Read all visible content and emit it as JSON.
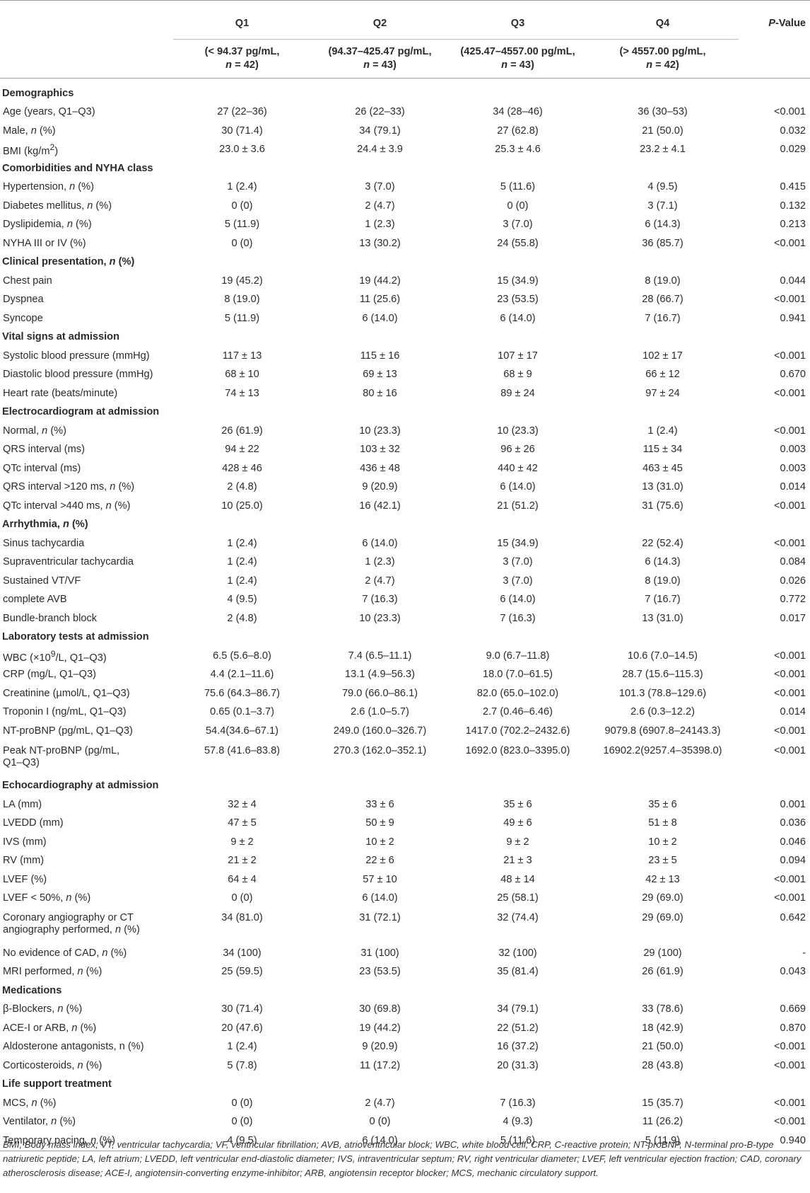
{
  "header": {
    "q1": "Q1",
    "q2": "Q2",
    "q3": "Q3",
    "q4": "Q4",
    "pvalue_p": "P",
    "pvalue_rest": "-Value",
    "q1_range": "(< 94.37 pg/mL,",
    "q2_range": "(94.37–425.47 pg/mL,",
    "q3_range": "(425.47–4557.00 pg/mL,",
    "q4_range": "(> 4557.00 pg/mL,",
    "n_prefix": "n",
    "q1_n": " = 42)",
    "q2_n": " = 43)",
    "q3_n": " = 43)",
    "q4_n": " = 42)"
  },
  "rows": {
    "r01": [
      "Demographics"
    ],
    "r02": [
      "Age (years, Q1–Q3)",
      "27 (22–36)",
      "26 (22–33)",
      "34 (28–46)",
      "36 (30–53)",
      "<0.001"
    ],
    "r03": [
      "Male, ",
      "n",
      " (%)",
      "30 (71.4)",
      "34 (79.1)",
      "27 (62.8)",
      "21 (50.0)",
      "0.032"
    ],
    "r04": [
      "BMI (kg/m",
      "2",
      ")",
      "23.0 ± 3.6",
      "24.4 ± 3.9",
      "25.3 ± 4.6",
      "23.2 ± 4.1",
      "0.029"
    ],
    "r05": [
      "Comorbidities and NYHA class"
    ],
    "r06": [
      "Hypertension, ",
      "n",
      " (%)",
      "1 (2.4)",
      "3 (7.0)",
      "5 (11.6)",
      "4 (9.5)",
      "0.415"
    ],
    "r07": [
      "Diabetes mellitus, ",
      "n",
      " (%)",
      "0 (0)",
      "2 (4.7)",
      "0 (0)",
      "3 (7.1)",
      "0.132"
    ],
    "r08": [
      "Dyslipidemia, ",
      "n",
      " (%)",
      "5 (11.9)",
      "1 (2.3)",
      "3 (7.0)",
      "6 (14.3)",
      "0.213"
    ],
    "r09": [
      "NYHA III or IV (%)",
      "0 (0)",
      "13 (30.2)",
      "24 (55.8)",
      "36 (85.7)",
      "<0.001"
    ],
    "r10": [
      "Clinical presentation, ",
      "n",
      " (%)"
    ],
    "r11": [
      "Chest pain",
      "19 (45.2)",
      "19 (44.2)",
      "15 (34.9)",
      "8 (19.0)",
      "0.044"
    ],
    "r12": [
      "Dyspnea",
      "8 (19.0)",
      "11 (25.6)",
      "23 (53.5)",
      "28 (66.7)",
      "<0.001"
    ],
    "r13": [
      "Syncope",
      "5 (11.9)",
      "6 (14.0)",
      "6 (14.0)",
      "7 (16.7)",
      "0.941"
    ],
    "r14": [
      "Vital signs at admission"
    ],
    "r15": [
      "Systolic blood pressure (mmHg)",
      "117 ± 13",
      "115 ± 16",
      "107 ± 17",
      "102 ± 17",
      "<0.001"
    ],
    "r16": [
      "Diastolic blood pressure (mmHg)",
      "68 ± 10",
      "69 ± 13",
      "68 ± 9",
      "66 ± 12",
      "0.670"
    ],
    "r17": [
      "Heart rate (beats/minute)",
      "74 ± 13",
      "80 ± 16",
      "89 ± 24",
      "97 ± 24",
      "<0.001"
    ],
    "r18": [
      "Electrocardiogram at admission"
    ],
    "r19": [
      "Normal, ",
      "n",
      " (%)",
      "26 (61.9)",
      "10 (23.3)",
      "10 (23.3)",
      "1 (2.4)",
      "<0.001"
    ],
    "r20": [
      "QRS interval (ms)",
      "94 ± 22",
      "103 ± 32",
      "96 ± 26",
      "115 ± 34",
      "0.003"
    ],
    "r21": [
      "QTc interval (ms)",
      "428 ± 46",
      "436 ± 48",
      "440 ± 42",
      "463 ± 45",
      "0.003"
    ],
    "r22": [
      "QRS interval >120 ms, ",
      "n",
      " (%)",
      "2 (4.8)",
      "9 (20.9)",
      "6 (14.0)",
      "13 (31.0)",
      "0.014"
    ],
    "r23": [
      "QTc interval >440 ms, ",
      "n",
      " (%)",
      "10 (25.0)",
      "16 (42.1)",
      "21 (51.2)",
      "31 (75.6)",
      "<0.001"
    ],
    "r24": [
      "Arrhythmia, ",
      "n",
      " (%)"
    ],
    "r25": [
      "Sinus tachycardia",
      "1 (2.4)",
      "6 (14.0)",
      "15 (34.9)",
      "22 (52.4)",
      "<0.001"
    ],
    "r26": [
      "Supraventricular tachycardia",
      "1 (2.4)",
      "1 (2.3)",
      "3 (7.0)",
      "6 (14.3)",
      "0.084"
    ],
    "r27": [
      "Sustained VT/VF",
      "1 (2.4)",
      "2 (4.7)",
      "3 (7.0)",
      "8 (19.0)",
      "0.026"
    ],
    "r28": [
      "complete AVB",
      "4 (9.5)",
      "7 (16.3)",
      "6 (14.0)",
      "7 (16.7)",
      "0.772"
    ],
    "r29": [
      "Bundle-branch block",
      "2 (4.8)",
      "10 (23.3)",
      "7 (16.3)",
      "13 (31.0)",
      "0.017"
    ],
    "r30": [
      "Laboratory tests at admission"
    ],
    "r31": [
      "WBC (×10",
      "9",
      "/L, Q1–Q3)",
      "6.5 (5.6–8.0)",
      "7.4 (6.5–11.1)",
      "9.0 (6.7–11.8)",
      "10.6 (7.0–14.5)",
      "<0.001"
    ],
    "r32": [
      "CRP (mg/L, Q1–Q3)",
      "4.4 (2.1–11.6)",
      "13.1 (4.9–56.3)",
      "18.0 (7.0–61.5)",
      "28.7 (15.6–115.3)",
      "<0.001"
    ],
    "r33": [
      "Creatinine (µmol/L, Q1–Q3)",
      "75.6 (64.3–86.7)",
      "79.0 (66.0–86.1)",
      "82.0 (65.0–102.0)",
      "101.3 (78.8–129.6)",
      "<0.001"
    ],
    "r34": [
      "Troponin I (ng/mL, Q1–Q3)",
      "0.65 (0.1–3.7)",
      "2.6 (1.0–5.7)",
      "2.7 (0.46–6.46)",
      "2.6 (0.3–12.2)",
      "0.014"
    ],
    "r35": [
      "NT-proBNP (pg/mL, Q1–Q3)",
      "54.4(34.6–67.1)",
      "249.0 (160.0–326.7)",
      "1417.0 (702.2–2432.6)",
      "9079.8 (6907.8–24143.3)",
      "<0.001"
    ],
    "r36": [
      "Peak NT-proBNP (pg/mL,",
      "Q1–Q3)",
      "57.8 (41.6–83.8)",
      "270.3 (162.0–352.1)",
      "1692.0 (823.0–3395.0)",
      "16902.2(9257.4–35398.0)",
      "<0.001"
    ],
    "r37": [
      "Echocardiography at admission"
    ],
    "r38": [
      "LA (mm)",
      "32 ± 4",
      "33 ± 6",
      "35 ± 6",
      "35 ± 6",
      "0.001"
    ],
    "r39": [
      "LVEDD (mm)",
      "47 ± 5",
      "50 ± 9",
      "49 ± 6",
      "51 ± 8",
      "0.036"
    ],
    "r40": [
      "IVS (mm)",
      "9 ± 2",
      "10 ± 2",
      "9 ± 2",
      "10 ± 2",
      "0.046"
    ],
    "r41": [
      "RV (mm)",
      "21 ± 2",
      "22 ± 6",
      "21 ± 3",
      "23 ± 5",
      "0.094"
    ],
    "r42": [
      "LVEF (%)",
      "64 ± 4",
      "57 ± 10",
      "48 ± 14",
      "42 ± 13",
      "<0.001"
    ],
    "r43": [
      "LVEF < 50%, ",
      "n",
      " (%)",
      "0 (0)",
      "6 (14.0)",
      "25 (58.1)",
      "29 (69.0)",
      "<0.001"
    ],
    "r44": [
      "Coronary angiography or CT",
      "angiography performed, ",
      "n",
      " (%)",
      "34 (81.0)",
      "31 (72.1)",
      "32 (74.4)",
      "29 (69.0)",
      "0.642"
    ],
    "r45": [
      "No evidence of CAD, ",
      "n",
      " (%)",
      "34 (100)",
      "31 (100)",
      "32 (100)",
      "29 (100)",
      "-"
    ],
    "r46": [
      "MRI performed, ",
      "n",
      " (%)",
      "25 (59.5)",
      "23 (53.5)",
      "35 (81.4)",
      "26 (61.9)",
      "0.043"
    ],
    "r47": [
      "Medications"
    ],
    "r48": [
      "β-Blockers, ",
      "n",
      " (%)",
      "30 (71.4)",
      "30 (69.8)",
      "34 (79.1)",
      "33 (78.6)",
      "0.669"
    ],
    "r49": [
      "ACE-I or ARB, ",
      "n",
      " (%)",
      "20 (47.6)",
      "19 (44.2)",
      "22 (51.2)",
      "18 (42.9)",
      "0.870"
    ],
    "r50": [
      "Aldosterone antagonists, n (%)",
      "1 (2.4)",
      "9 (20.9)",
      "16 (37.2)",
      "21 (50.0)",
      "<0.001"
    ],
    "r51": [
      "Corticosteroids, ",
      "n",
      " (%)",
      "5 (7.8)",
      "11 (17.2)",
      "20 (31.3)",
      "28 (43.8)",
      "<0.001"
    ],
    "r52": [
      "Life support treatment"
    ],
    "r53": [
      "MCS, ",
      "n",
      " (%)",
      "0 (0)",
      "2 (4.7)",
      "7 (16.3)",
      "15 (35.7)",
      "<0.001"
    ],
    "r54": [
      "Ventilator, ",
      "n",
      " (%)",
      "0 (0)",
      "0 (0)",
      "4 (9.3)",
      "11 (26.2)",
      "<0.001"
    ],
    "r55": [
      "Temporary pacing, ",
      "n",
      " (%)",
      "4 (9.5)",
      "6 (14.0)",
      "5 (11.6)",
      "5 (11.9)",
      "0.940"
    ]
  },
  "footnote": "BMI, Body mass index; VT, ventricular tachycardia; VF, ventricular fibrillation; AVB, atrioventricular block; WBC, white blood cell; CRP, C-reactive protein; NT-proBNP, N-terminal pro-B-type natriuretic peptide; LA, left atrium; LVEDD, left ventricular end-diastolic diameter; IVS, intraventricular septum; RV, right ventricular diameter; LVEF, left ventricular ejection fraction; CAD, coronary atherosclerosis disease; ACE-I, angiotensin-converting enzyme-inhibitor; ARB, angiotensin receptor blocker; MCS, mechanic circulatory support."
}
